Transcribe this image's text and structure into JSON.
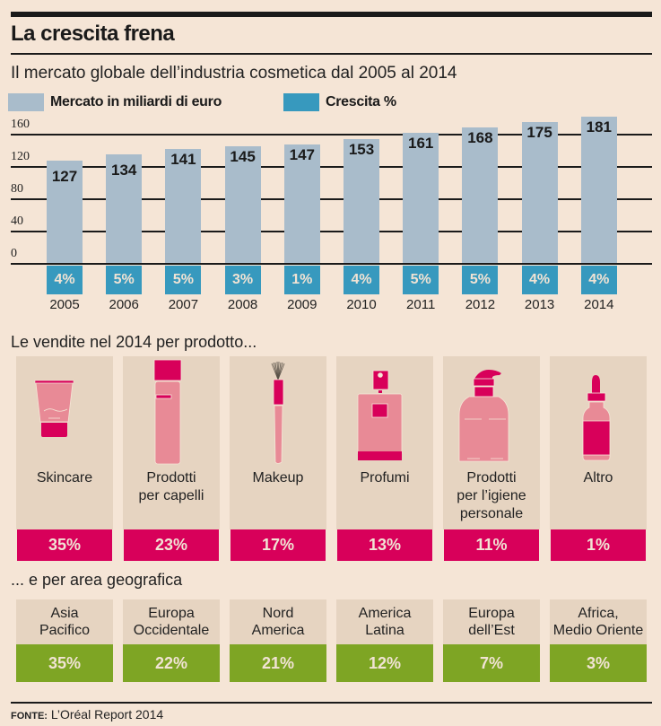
{
  "header": {
    "title": "La crescita frena",
    "subtitle": "Il mercato globale dell’industria cosmetica dal 2005 al 2014"
  },
  "legend": [
    {
      "label": "Mercato in miliardi di euro",
      "color": "#a9bccb"
    },
    {
      "label": "Crescita %",
      "color": "#3799be"
    }
  ],
  "chart_data": {
    "type": "bar",
    "title": "Il mercato globale dell’industria cosmetica dal 2005 al 2014",
    "xlabel": "",
    "ylabel": "Mercato in miliardi di euro",
    "ylim": [
      0,
      160
    ],
    "yticks": [
      "160",
      "120",
      "80",
      "40",
      "0"
    ],
    "ytick_values": [
      160,
      120,
      80,
      40,
      0
    ],
    "grid": true,
    "legend_position": "top-left",
    "categories": [
      "2005",
      "2006",
      "2007",
      "2008",
      "2009",
      "2010",
      "2011",
      "2012",
      "2013",
      "2014"
    ],
    "series": [
      {
        "name": "Mercato in miliardi di euro",
        "values": [
          127,
          134,
          141,
          145,
          147,
          153,
          161,
          168,
          175,
          181
        ],
        "color": "#a9bccb"
      },
      {
        "name": "Crescita %",
        "values": [
          4,
          5,
          5,
          3,
          1,
          4,
          5,
          5,
          4,
          4
        ],
        "color": "#3799be"
      }
    ],
    "value_labels": [
      "127",
      "134",
      "141",
      "145",
      "147",
      "153",
      "161",
      "168",
      "175",
      "181"
    ],
    "growth_labels": [
      "4%",
      "5%",
      "5%",
      "3%",
      "1%",
      "4%",
      "5%",
      "5%",
      "4%",
      "4%"
    ]
  },
  "products": {
    "title": "Le vendite nel 2014 per prodotto...",
    "items": [
      {
        "icon": "tube-icon",
        "label_lines": [
          "Skincare"
        ],
        "value": "35%"
      },
      {
        "icon": "hair-product-bottle-icon",
        "label_lines": [
          "Prodotti",
          "per capelli"
        ],
        "value": "23%"
      },
      {
        "icon": "makeup-brush-icon",
        "label_lines": [
          "Makeup"
        ],
        "value": "17%"
      },
      {
        "icon": "perfume-bottle-icon",
        "label_lines": [
          "Profumi"
        ],
        "value": "13%"
      },
      {
        "icon": "pump-bottle-icon",
        "label_lines": [
          "Prodotti",
          "per l’igiene",
          "personale"
        ],
        "value": "11%"
      },
      {
        "icon": "dropper-bottle-icon",
        "label_lines": [
          "Altro"
        ],
        "value": "1%"
      }
    ],
    "color": "#d8005a"
  },
  "regions": {
    "title": "... e per area geografica",
    "items": [
      {
        "label_lines": [
          "Asia",
          "Pacifico"
        ],
        "value": "35%"
      },
      {
        "label_lines": [
          "Europa",
          "Occidentale"
        ],
        "value": "22%"
      },
      {
        "label_lines": [
          "Nord",
          "America"
        ],
        "value": "21%"
      },
      {
        "label_lines": [
          "America",
          "Latina"
        ],
        "value": "12%"
      },
      {
        "label_lines": [
          "Europa",
          "dell’Est"
        ],
        "value": "7%"
      },
      {
        "label_lines": [
          "Africa,",
          "Medio Oriente"
        ],
        "value": "3%"
      }
    ],
    "color": "#7ea524"
  },
  "source": {
    "label": "FONTE:",
    "text": " L’Oréal Report 2014"
  }
}
